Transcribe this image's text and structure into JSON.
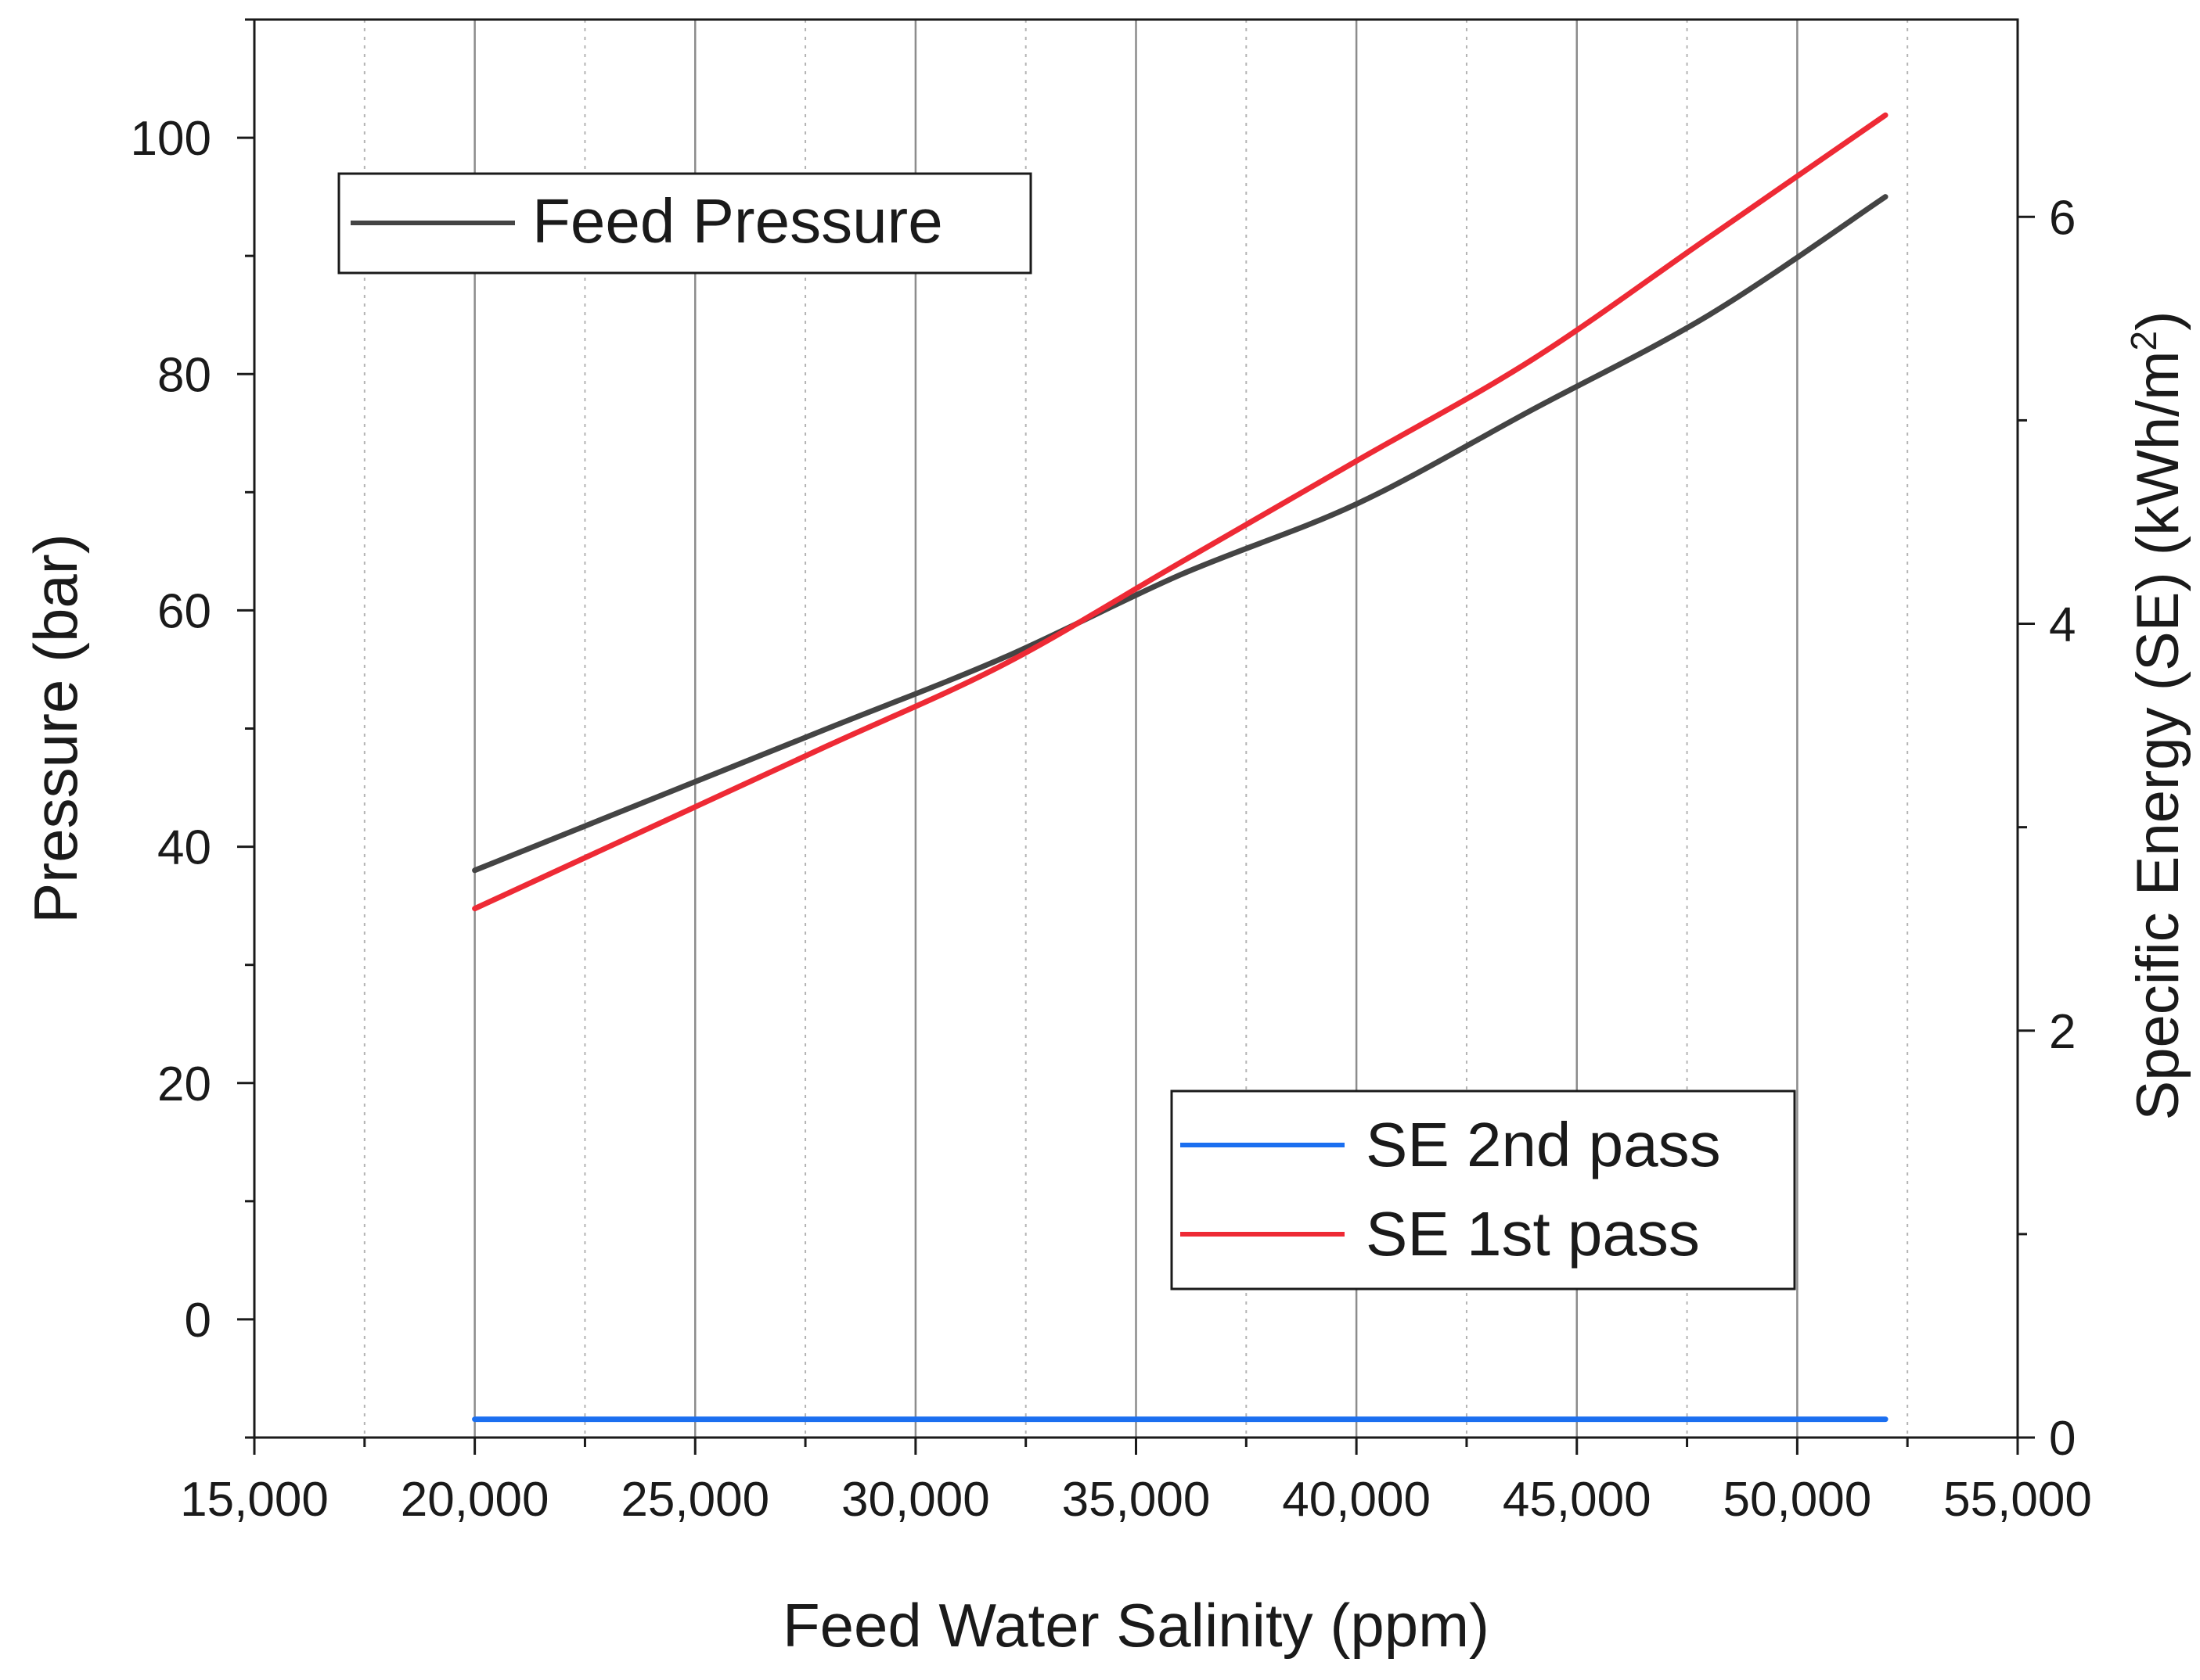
{
  "chart_data": {
    "type": "line",
    "title": "",
    "xlabel": "Feed Water Salinity (ppm)",
    "ylabel_left": "Pressure (bar)",
    "ylabel_right_main": "Specific Energy (SE) (kWh/m",
    "ylabel_right_sup": "2",
    "ylabel_right_close": ")",
    "xlim": [
      15000,
      55000
    ],
    "ylim_left": [
      -10,
      110
    ],
    "ylim_right": [
      0,
      6.97
    ],
    "x_ticks": [
      15000,
      20000,
      25000,
      30000,
      35000,
      40000,
      45000,
      50000,
      55000
    ],
    "x_tick_labels": [
      "15,000",
      "20,000",
      "25,000",
      "30,000",
      "35,000",
      "40,000",
      "45,000",
      "50,000",
      "55,000"
    ],
    "x_minor_ticks": [
      17500,
      22500,
      27500,
      32500,
      37500,
      42500,
      47500,
      52500
    ],
    "y_left_ticks": [
      0,
      20,
      40,
      60,
      80,
      100
    ],
    "y_left_tick_labels": [
      "0",
      "20",
      "40",
      "60",
      "80",
      "100"
    ],
    "y_left_minor_ticks": [
      -10,
      10,
      30,
      50,
      70,
      90,
      110
    ],
    "y_right_ticks": [
      0,
      2,
      4,
      6
    ],
    "y_right_tick_labels": [
      "0",
      "2",
      "4",
      "6"
    ],
    "y_right_minor_ticks": [
      1,
      3,
      5
    ],
    "grid": "vertical",
    "legends": [
      {
        "placement": "top-left",
        "entries": [
          "Feed Pressure"
        ]
      },
      {
        "placement": "bottom-right",
        "entries": [
          "SE 2nd pass",
          "SE 1st pass"
        ]
      }
    ],
    "x": [
      20000,
      24000,
      28000,
      32000,
      36000,
      40000,
      44000,
      48000,
      52000
    ],
    "series": [
      {
        "name": "Feed Pressure",
        "axis": "left",
        "color": "#444444",
        "values": [
          38,
          44,
          50,
          56,
          63,
          69,
          77,
          85,
          95
        ]
      },
      {
        "name": "SE 2nd pass",
        "axis": "right",
        "color": "#1b6ff0",
        "values": [
          0.09,
          0.09,
          0.09,
          0.09,
          0.09,
          0.09,
          0.09,
          0.09,
          0.09
        ]
      },
      {
        "name": "SE 1st pass",
        "axis": "right",
        "color": "#ee2a35",
        "values": [
          2.6,
          3.0,
          3.4,
          3.8,
          4.3,
          4.8,
          5.3,
          5.9,
          6.5
        ]
      }
    ]
  }
}
